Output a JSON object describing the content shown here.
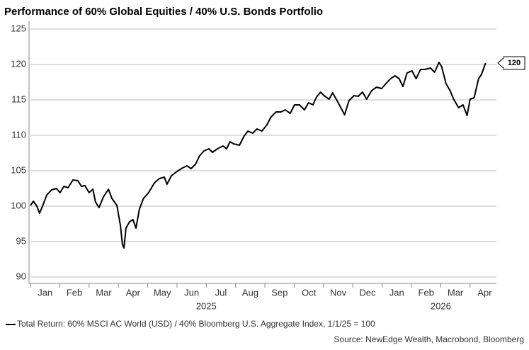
{
  "chart_data": {
    "type": "line",
    "title": "Performance of 60% Global Equities / 40% U.S. Bonds Portfolio",
    "x": [
      0,
      0.1,
      0.22,
      0.31,
      0.41,
      0.56,
      0.72,
      0.89,
      1.01,
      1.14,
      1.28,
      1.45,
      1.62,
      1.74,
      1.86,
      2.0,
      2.13,
      2.22,
      2.34,
      2.49,
      2.66,
      2.78,
      2.95,
      3.07,
      3.14,
      3.19,
      3.26,
      3.38,
      3.5,
      3.6,
      3.72,
      3.86,
      4.03,
      4.23,
      4.4,
      4.57,
      4.66,
      4.81,
      5.0,
      5.19,
      5.34,
      5.48,
      5.63,
      5.77,
      5.92,
      6.09,
      6.21,
      6.38,
      6.57,
      6.69,
      6.81,
      6.93,
      7.13,
      7.29,
      7.42,
      7.58,
      7.73,
      7.9,
      8.07,
      8.21,
      8.38,
      8.55,
      8.7,
      8.86,
      9.01,
      9.18,
      9.35,
      9.49,
      9.64,
      9.76,
      9.9,
      10.02,
      10.19,
      10.31,
      10.46,
      10.63,
      10.72,
      10.87,
      11.04,
      11.18,
      11.33,
      11.47,
      11.64,
      11.81,
      11.98,
      12.13,
      12.29,
      12.44,
      12.58,
      12.71,
      12.85,
      13.02,
      13.16,
      13.31,
      13.45,
      13.65,
      13.79,
      13.94,
      14.03,
      14.18,
      14.32,
      14.44,
      14.61,
      14.76,
      14.9,
      15.0,
      15.14,
      15.29,
      15.39,
      15.53
    ],
    "series": [
      {
        "name": "Total Return: 60% MSCI AC World (USD) / 40% Bloomberg U.S. Aggregate Index, 1/1/25 = 100",
        "color": "#000000",
        "values": [
          100.1,
          100.7,
          100,
          99,
          100,
          101.6,
          102.3,
          102.5,
          101.9,
          102.8,
          102.6,
          103.7,
          103.6,
          102.8,
          102.9,
          101.9,
          102.4,
          100.6,
          99.8,
          101.3,
          102.4,
          101.1,
          100.1,
          97.3,
          94.6,
          94.1,
          96.9,
          97.8,
          98.1,
          96.9,
          99.6,
          101.1,
          101.9,
          103.3,
          103.9,
          104.1,
          103.1,
          104.3,
          104.9,
          105.4,
          105.7,
          105.3,
          105.9,
          107.1,
          107.8,
          108.1,
          107.6,
          108.1,
          108.5,
          108.1,
          109.1,
          108.8,
          108.6,
          109.9,
          110.6,
          110.3,
          110.9,
          110.6,
          111.5,
          112.6,
          113.3,
          113.3,
          113.6,
          113.1,
          114.3,
          114.3,
          113.6,
          114.6,
          114.3,
          115.4,
          116.1,
          115.6,
          115.1,
          116,
          114.9,
          113.6,
          112.9,
          114.9,
          115.6,
          115.5,
          116.1,
          115.1,
          116.3,
          116.8,
          116.6,
          117.3,
          118,
          118.4,
          118,
          116.9,
          118.8,
          119.1,
          118,
          119.3,
          119.3,
          119.5,
          118.9,
          120.3,
          119.7,
          117.3,
          116.3,
          115.1,
          113.9,
          114.3,
          112.8,
          115.1,
          115.3,
          118,
          118.6,
          120.2
        ]
      }
    ],
    "last_value_label": "120",
    "xlim": [
      0,
      15.9
    ],
    "xticks": [
      {
        "value": 0.5,
        "label": "Jan"
      },
      {
        "value": 1.5,
        "label": "Feb"
      },
      {
        "value": 2.5,
        "label": "Mar"
      },
      {
        "value": 3.5,
        "label": "Apr"
      },
      {
        "value": 4.5,
        "label": "May"
      },
      {
        "value": 5.5,
        "label": "Jun"
      },
      {
        "value": 6.5,
        "label": "Jul"
      },
      {
        "value": 7.5,
        "label": "Aug"
      },
      {
        "value": 8.5,
        "label": "Sep"
      },
      {
        "value": 9.5,
        "label": "Oct"
      },
      {
        "value": 10.5,
        "label": "Nov"
      },
      {
        "value": 11.5,
        "label": "Dec"
      },
      {
        "value": 12.5,
        "label": "Jan"
      },
      {
        "value": 13.5,
        "label": "Feb"
      },
      {
        "value": 14.5,
        "label": "Mar"
      },
      {
        "value": 15.5,
        "label": "Apr"
      }
    ],
    "year_labels": [
      {
        "value": 6,
        "label": "2025"
      },
      {
        "value": 14,
        "label": "2026"
      }
    ],
    "ylim": [
      89.1,
      125.6
    ],
    "yticks": [
      90,
      95,
      100,
      105,
      110,
      115,
      120,
      125
    ],
    "grid": true,
    "source": "Source: NewEdge Wealth, Macrobond, Bloomberg"
  }
}
